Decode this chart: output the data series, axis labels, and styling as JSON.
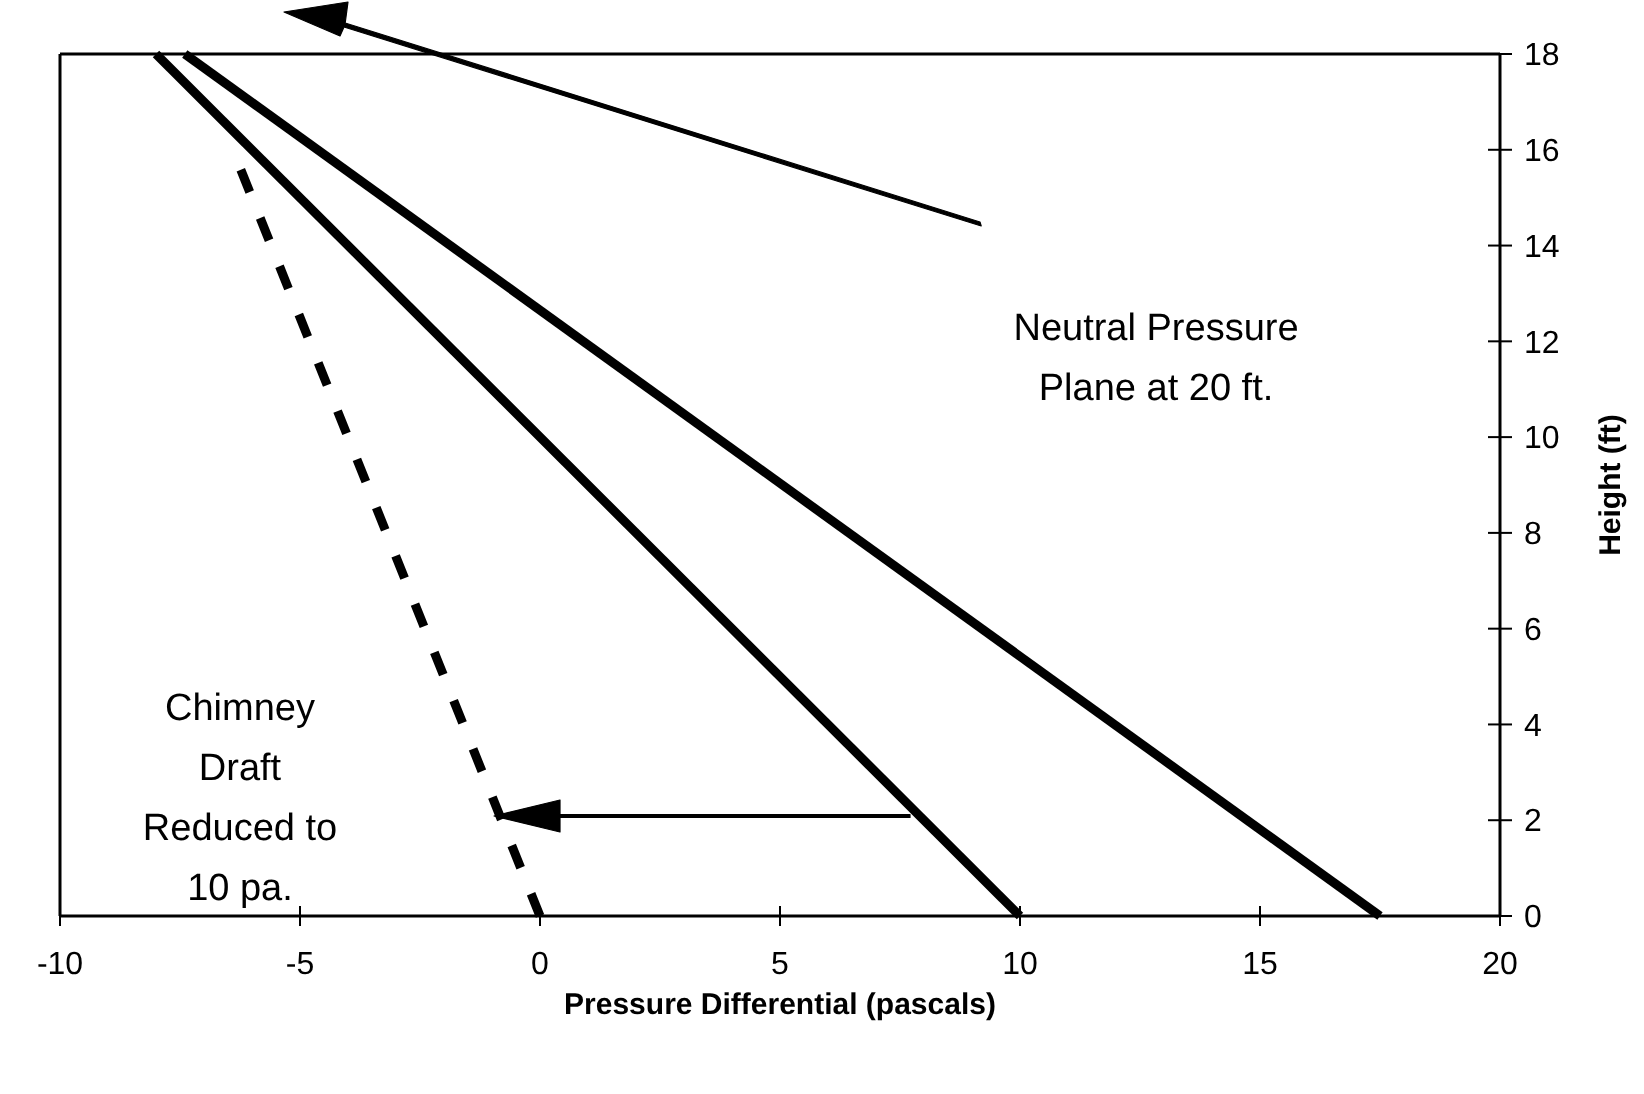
{
  "chart_data": {
    "type": "line",
    "xlabel": "Pressure Differential (pascals)",
    "ylabel": "Height (ft)",
    "xlim": [
      -10,
      20
    ],
    "xticks": [
      -10,
      -5,
      0,
      5,
      10,
      15,
      20
    ],
    "ylim": [
      0,
      18
    ],
    "yticks": [
      0,
      2,
      4,
      6,
      8,
      10,
      12,
      14,
      16,
      18
    ],
    "grid": false,
    "marker": "none",
    "series": [
      {
        "color": "#000000",
        "x": [
          10,
          -8
        ],
        "values": [
          0,
          18
        ],
        "line_style": "solid"
      },
      {
        "color": "#000000",
        "x": [
          17.5,
          -7.4
        ],
        "values": [
          0,
          18
        ],
        "line_style": "solid"
      },
      {
        "color": "#000000",
        "x": [
          0,
          -6.4
        ],
        "values": [
          0,
          16
        ],
        "line_style": "dashed"
      }
    ],
    "annotations": [
      "Neutral Pressure Plane at 20 ft.",
      "Chimney Draft Reduced to 10 pa."
    ]
  }
}
